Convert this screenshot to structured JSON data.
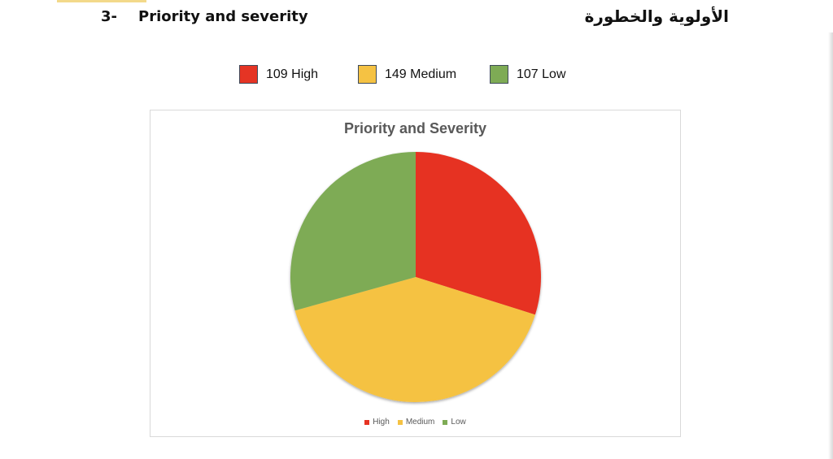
{
  "section": {
    "number": "3-",
    "title": "Priority and severity",
    "title_ar": "الأولوية والخطورة"
  },
  "top_legend": [
    {
      "label": "109 High",
      "color": "#e53424"
    },
    {
      "label": "149 Medium",
      "color": "#f5c243"
    },
    {
      "label": "107 Low",
      "color": "#7eab55"
    }
  ],
  "chart_data": {
    "type": "pie",
    "title": "Priority and Severity",
    "categories": [
      "High",
      "Medium",
      "Low"
    ],
    "values": [
      109,
      149,
      107
    ],
    "colors": [
      "#e63323",
      "#f5c243",
      "#7eab55"
    ],
    "legend_position": "bottom"
  }
}
